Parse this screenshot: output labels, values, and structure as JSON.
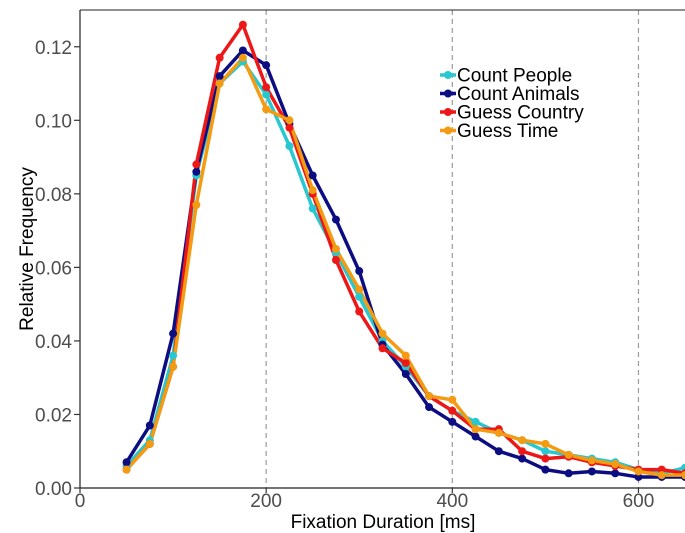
{
  "chart_data": {
    "type": "line",
    "title": "",
    "xlabel": "Fixation Duration [ms]",
    "ylabel": "Relative Frequency",
    "xlim": [
      0,
      650
    ],
    "ylim": [
      0,
      0.13
    ],
    "xticks": [
      {
        "value": 0,
        "label": "0"
      },
      {
        "value": 200,
        "label": "200"
      },
      {
        "value": 400,
        "label": "400"
      },
      {
        "value": 600,
        "label": "600"
      }
    ],
    "yticks": [
      {
        "value": 0.0,
        "label": "0.00"
      },
      {
        "value": 0.02,
        "label": "0.02"
      },
      {
        "value": 0.04,
        "label": "0.04"
      },
      {
        "value": 0.06,
        "label": "0.06"
      },
      {
        "value": 0.08,
        "label": "0.08"
      },
      {
        "value": 0.1,
        "label": "0.10"
      },
      {
        "value": 0.12,
        "label": "0.12"
      }
    ],
    "vertical_reference_lines": [
      200,
      400,
      600
    ],
    "grid": false,
    "legend_position": "top-right",
    "x": [
      50,
      75,
      100,
      125,
      150,
      175,
      200,
      225,
      250,
      275,
      300,
      325,
      350,
      375,
      400,
      425,
      450,
      475,
      500,
      525,
      550,
      575,
      600,
      625,
      650
    ],
    "series": [
      {
        "name": "Count People",
        "color": "#27C8D0",
        "values": [
          0.006,
          0.013,
          0.036,
          0.085,
          0.11,
          0.116,
          0.107,
          0.093,
          0.076,
          0.064,
          0.052,
          0.04,
          0.033,
          0.025,
          0.021,
          0.018,
          0.015,
          0.013,
          0.01,
          0.009,
          0.008,
          0.007,
          0.005,
          0.004,
          0.0055
        ]
      },
      {
        "name": "Count Animals",
        "color": "#0D0D82",
        "values": [
          0.007,
          0.017,
          0.042,
          0.086,
          0.112,
          0.119,
          0.115,
          0.099,
          0.085,
          0.073,
          0.059,
          0.039,
          0.031,
          0.022,
          0.018,
          0.014,
          0.01,
          0.008,
          0.005,
          0.004,
          0.0045,
          0.004,
          0.003,
          0.003,
          0.003
        ]
      },
      {
        "name": "Guess Country",
        "color": "#EE1717",
        "values": [
          0.005,
          0.012,
          0.033,
          0.088,
          0.117,
          0.126,
          0.109,
          0.098,
          0.08,
          0.062,
          0.048,
          0.038,
          0.034,
          0.025,
          0.021,
          0.016,
          0.016,
          0.01,
          0.008,
          0.0085,
          0.007,
          0.006,
          0.005,
          0.005,
          0.004
        ]
      },
      {
        "name": "Guess Time",
        "color": "#F39B12",
        "values": [
          0.005,
          0.012,
          0.033,
          0.077,
          0.11,
          0.117,
          0.103,
          0.1,
          0.081,
          0.065,
          0.054,
          0.042,
          0.036,
          0.025,
          0.024,
          0.016,
          0.015,
          0.013,
          0.012,
          0.009,
          0.0075,
          0.0065,
          0.0045,
          0.0035,
          0.0035
        ]
      }
    ]
  }
}
